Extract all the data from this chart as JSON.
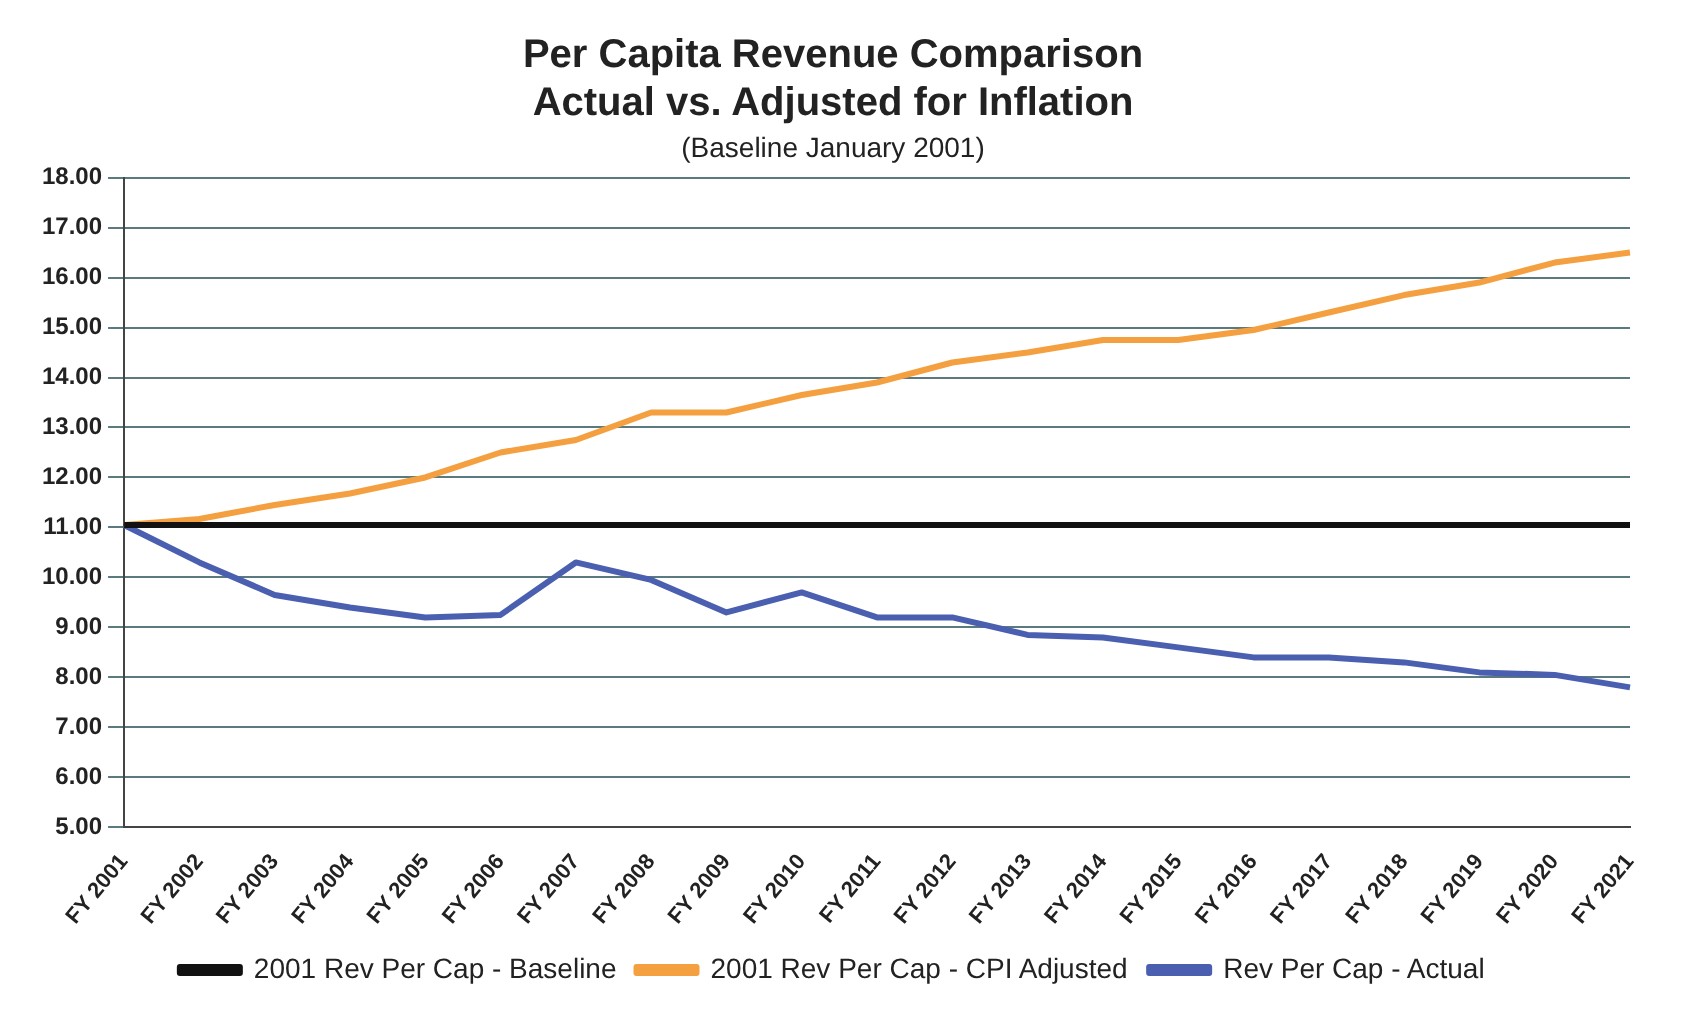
{
  "chart_data": {
    "type": "line",
    "title": [
      "Per Capita Revenue Comparison",
      "Actual vs. Adjusted for Inflation"
    ],
    "subtitle": "(Baseline January 2001)",
    "categories": [
      "FY 2001",
      "FY 2002",
      "FY 2003",
      "FY 2004",
      "FY 2005",
      "FY 2006",
      "FY 2007",
      "FY 2008",
      "FY 2009",
      "FY 2010",
      "FY 2011",
      "FY 2012",
      "FY 2013",
      "FY 2014",
      "FY 2015",
      "FY 2016",
      "FY 2017",
      "FY 2018",
      "FY 2019",
      "FY 2020",
      "FY 2021"
    ],
    "series": [
      {
        "name": "2001 Rev Per Cap - Baseline",
        "color": "#111111",
        "values": [
          11.05,
          11.05,
          11.05,
          11.05,
          11.05,
          11.05,
          11.05,
          11.05,
          11.05,
          11.05,
          11.05,
          11.05,
          11.05,
          11.05,
          11.05,
          11.05,
          11.05,
          11.05,
          11.05,
          11.05,
          11.05
        ]
      },
      {
        "name": "2001 Rev Per Cap - CPI Adjusted",
        "color": "#f5a040",
        "values": [
          11.05,
          11.17,
          11.45,
          11.68,
          12.0,
          12.5,
          12.75,
          13.3,
          13.3,
          13.65,
          13.9,
          14.3,
          14.5,
          14.75,
          14.75,
          14.95,
          15.3,
          15.65,
          15.9,
          16.3,
          16.5
        ]
      },
      {
        "name": "Rev Per Cap - Actual",
        "color": "#4a5fb0",
        "values": [
          11.05,
          10.3,
          9.65,
          9.4,
          9.2,
          9.25,
          10.3,
          9.95,
          9.3,
          9.7,
          9.2,
          9.2,
          8.85,
          8.8,
          8.6,
          8.4,
          8.4,
          8.3,
          8.1,
          8.05,
          7.8
        ]
      }
    ],
    "ylim": [
      5,
      18
    ],
    "yticks": [
      {
        "value": 5,
        "label": "5.00"
      },
      {
        "value": 6,
        "label": "6.00"
      },
      {
        "value": 7,
        "label": "7.00"
      },
      {
        "value": 8,
        "label": "8.00"
      },
      {
        "value": 9,
        "label": "9.00"
      },
      {
        "value": 10,
        "label": "10.00"
      },
      {
        "value": 11,
        "label": "11.00"
      },
      {
        "value": 12,
        "label": "12.00"
      },
      {
        "value": 13,
        "label": "13.00"
      },
      {
        "value": 14,
        "label": "14.00"
      },
      {
        "value": 15,
        "label": "15.00"
      },
      {
        "value": 16,
        "label": "16.00"
      },
      {
        "value": 17,
        "label": "17.00"
      },
      {
        "value": 18,
        "label": "18.00"
      }
    ],
    "grid": "y",
    "legend": "bottom",
    "marker": "none",
    "line_style": "solid"
  }
}
